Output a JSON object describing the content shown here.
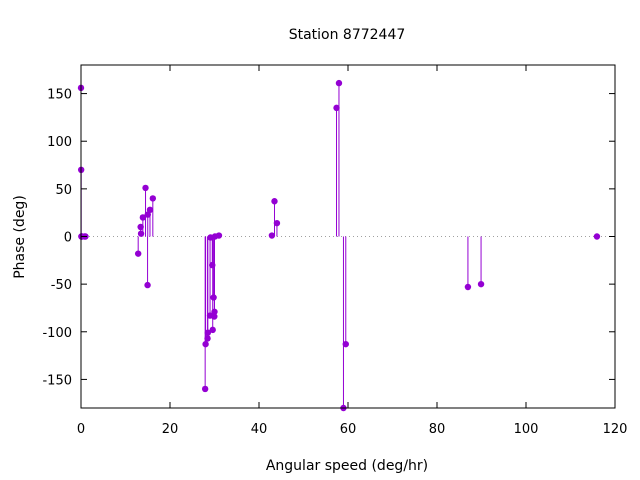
{
  "chart_data": {
    "type": "scatter",
    "style": "impulses-with-points",
    "title": "Station 8772447",
    "xlabel": "Angular speed (deg/hr)",
    "ylabel": "Phase (deg)",
    "xlim": [
      0,
      120
    ],
    "ylim": [
      -180,
      180
    ],
    "xticks": [
      0,
      20,
      40,
      60,
      80,
      100,
      120
    ],
    "yticks": [
      -150,
      -100,
      -50,
      0,
      50,
      100,
      150
    ],
    "zero_line": true,
    "grid": false,
    "color": "#9400d3",
    "series": [
      {
        "x": [
          0.0,
          0.04,
          0.08,
          0.12,
          0.16,
          0.2,
          0.8,
          1.0,
          12.85,
          13.4,
          13.5,
          13.9,
          14.5,
          14.96,
          15.0,
          15.5,
          16.14,
          27.9,
          28.0,
          28.44,
          28.5,
          29.0,
          29.1,
          29.5,
          29.6,
          29.8,
          29.96,
          30.0,
          30.1,
          31.0,
          42.9,
          43.48,
          44.03,
          57.42,
          57.97,
          58.98,
          59.5,
          86.95,
          89.9,
          115.94
        ],
        "y": [
          156,
          70,
          0,
          0,
          0,
          0,
          0,
          0,
          -18,
          10,
          3,
          20,
          51,
          -51,
          23,
          28,
          40,
          -160,
          -113,
          -107,
          -101,
          -83,
          -1,
          -30,
          -98,
          -64,
          -84,
          -79,
          0,
          1,
          1,
          37,
          14,
          135,
          161,
          -180,
          -113,
          -53,
          -50,
          0
        ]
      }
    ]
  }
}
